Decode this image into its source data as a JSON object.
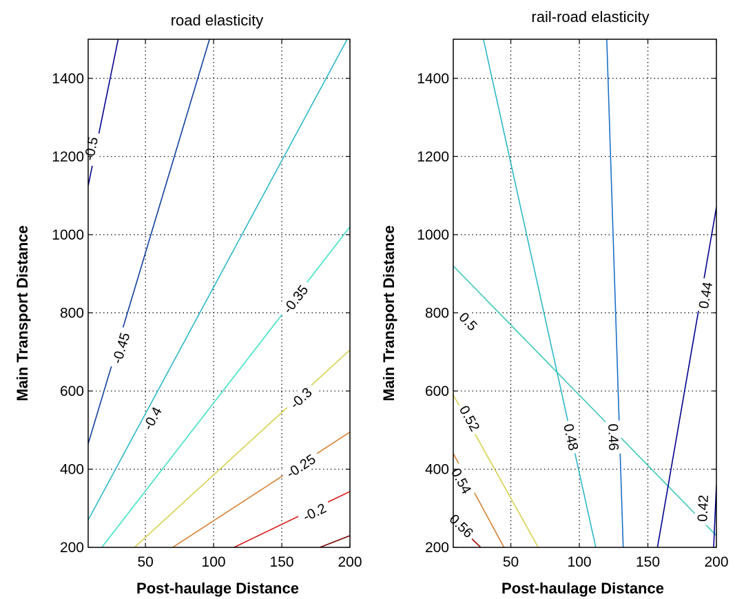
{
  "chart_data": [
    {
      "type": "contour",
      "title": "road elasticity",
      "xlabel": "Post-haulage Distance",
      "ylabel": "Main Transport Distance",
      "xlim": [
        8,
        200
      ],
      "ylim": [
        200,
        1500
      ],
      "xticks": [
        50,
        100,
        150,
        200
      ],
      "yticks": [
        200,
        400,
        600,
        800,
        1000,
        1200,
        1400
      ],
      "grid": true,
      "contours": [
        {
          "level": -0.5,
          "label": "-0.5",
          "color": "#00008f",
          "points": [
            [
              8,
              1125
            ],
            [
              30,
              1500
            ]
          ],
          "label_at": [
            10,
            1220
          ]
        },
        {
          "level": -0.45,
          "label": "-0.45",
          "color": "#0f3f9f",
          "points": [
            [
              8,
              465
            ],
            [
              97,
              1500
            ]
          ],
          "label_at": [
            32,
            710
          ]
        },
        {
          "level": -0.4,
          "label": "-0.4",
          "color": "#2ab8c8",
          "points": [
            [
              8,
              270
            ],
            [
              198,
              1500
            ]
          ],
          "label_at": [
            55,
            530
          ]
        },
        {
          "level": -0.35,
          "label": "-0.35",
          "color": "#40e0c8",
          "points": [
            [
              18,
              200
            ],
            [
              200,
              1020
            ]
          ],
          "label_at": [
            160,
            835
          ]
        },
        {
          "level": -0.3,
          "label": "-0.3",
          "color": "#d8d050",
          "points": [
            [
              42,
              200
            ],
            [
              200,
              705
            ]
          ],
          "label_at": [
            164,
            582
          ]
        },
        {
          "level": -0.25,
          "label": "-0.25",
          "color": "#d88030",
          "points": [
            [
              70,
              200
            ],
            [
              200,
              495
            ]
          ],
          "label_at": [
            164,
            408
          ]
        },
        {
          "level": -0.2,
          "label": "-0.2",
          "color": "#d81818",
          "points": [
            [
              115,
              200
            ],
            [
              200,
              343
            ]
          ],
          "label_at": [
            174,
            290
          ]
        },
        {
          "level": -0.15,
          "label": "",
          "color": "#7a0000",
          "points": [
            [
              178,
              200
            ],
            [
              200,
              230
            ]
          ],
          "label_at": null
        }
      ]
    },
    {
      "type": "contour",
      "title": "rail-road elasticity",
      "xlabel": "Post-haulage Distance",
      "ylabel": "Main Transport Distance",
      "xlim": [
        8,
        200
      ],
      "ylim": [
        200,
        1500
      ],
      "xticks": [
        50,
        100,
        150,
        200
      ],
      "yticks": [
        200,
        400,
        600,
        800,
        1000,
        1200,
        1400
      ],
      "grid": true,
      "contours": [
        {
          "level": 0.5,
          "label": "0.5",
          "color": "#3cc8b8",
          "points": [
            [
              8,
              920
            ],
            [
              200,
              230
            ]
          ],
          "label_at": [
            19,
            778
          ]
        },
        {
          "level": 0.48,
          "label": "0.48",
          "color": "#2ab8c8",
          "points": [
            [
              30,
              1500
            ],
            [
              112,
              200
            ]
          ],
          "label_at": [
            94,
            482
          ]
        },
        {
          "level": 0.46,
          "label": "0.46",
          "color": "#1a70c8",
          "points": [
            [
              120,
              1500
            ],
            [
              132,
              200
            ]
          ],
          "label_at": [
            125,
            482
          ]
        },
        {
          "level": 0.44,
          "label": "0.44",
          "color": "#00008f",
          "points": [
            [
              200,
              1070
            ],
            [
              157,
              200
            ]
          ],
          "label_at": [
            192,
            845
          ]
        },
        {
          "level": 0.42,
          "label": "0.42",
          "color": "#00008f",
          "points": [
            [
              200,
              360
            ],
            [
              198,
              200
            ]
          ],
          "label_at": [
            190,
            300
          ]
        },
        {
          "level": 0.52,
          "label": "0.52",
          "color": "#d8d050",
          "points": [
            [
              8,
              590
            ],
            [
              70,
              200
            ]
          ],
          "label_at": [
            20,
            530
          ]
        },
        {
          "level": 0.54,
          "label": "0.54",
          "color": "#d88030",
          "points": [
            [
              8,
              440
            ],
            [
              45,
              200
            ]
          ],
          "label_at": [
            14,
            370
          ]
        },
        {
          "level": 0.56,
          "label": "0.56",
          "color": "#a00000",
          "points": [
            [
              8,
              268
            ],
            [
              28,
              200
            ]
          ],
          "label_at": [
            14,
            255
          ]
        }
      ]
    }
  ]
}
